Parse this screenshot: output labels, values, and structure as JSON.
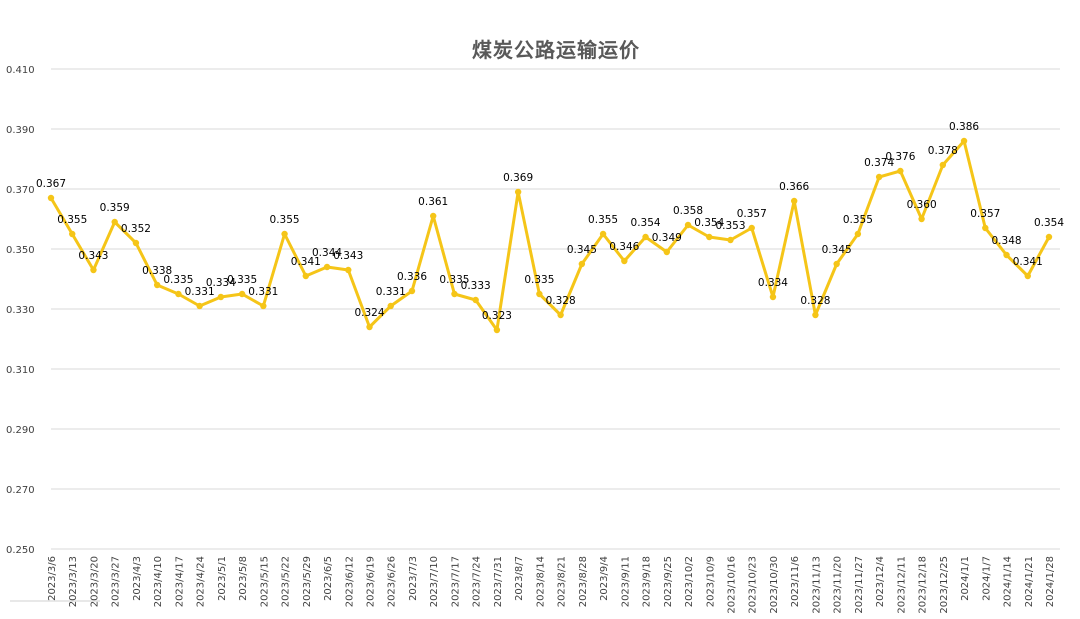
{
  "chart_data": {
    "type": "line",
    "title": "煤炭公路运输运价",
    "xlabel": "",
    "ylabel": "",
    "ylim": [
      0.25,
      0.41
    ],
    "yticks": [
      "0.250",
      "0.270",
      "0.290",
      "0.310",
      "0.330",
      "0.350",
      "0.370",
      "0.390",
      "0.410"
    ],
    "grid": true,
    "legend": "none",
    "line_color": "#f5c518",
    "categories": [
      "2023/3/6",
      "2023/3/13",
      "2023/3/20",
      "2023/3/27",
      "2023/4/3",
      "2023/4/10",
      "2023/4/17",
      "2023/4/24",
      "2023/5/1",
      "2023/5/8",
      "2023/5/15",
      "2023/5/22",
      "2023/5/29",
      "2023/6/5",
      "2023/6/12",
      "2023/6/19",
      "2023/6/26",
      "2023/7/3",
      "2023/7/10",
      "2023/7/17",
      "2023/7/24",
      "2023/7/31",
      "2023/8/7",
      "2023/8/14",
      "2023/8/21",
      "2023/8/28",
      "2023/9/4",
      "2023/9/11",
      "2023/9/18",
      "2023/9/25",
      "2023/10/2",
      "2023/10/9",
      "2023/10/16",
      "2023/10/23",
      "2023/10/30",
      "2023/11/6",
      "2023/11/13",
      "2023/11/20",
      "2023/11/27",
      "2023/12/4",
      "2023/12/11",
      "2023/12/18",
      "2023/12/25",
      "2024/1/1",
      "2024/1/7",
      "2024/1/14",
      "2024/1/21",
      "2024/1/28"
    ],
    "values": [
      0.367,
      0.355,
      0.343,
      0.359,
      0.352,
      0.338,
      0.335,
      0.331,
      0.334,
      0.335,
      0.331,
      0.355,
      0.341,
      0.344,
      0.343,
      0.324,
      0.331,
      0.336,
      0.361,
      0.335,
      0.333,
      0.323,
      0.369,
      0.335,
      0.328,
      0.345,
      0.355,
      0.346,
      0.354,
      0.349,
      0.358,
      0.354,
      0.353,
      0.357,
      0.334,
      0.366,
      0.328,
      0.345,
      0.355,
      0.374,
      0.376,
      0.36,
      0.378,
      0.386,
      0.357,
      0.348,
      0.341,
      0.354
    ],
    "data_labels": [
      "0.367",
      "0.355",
      "0.343",
      "0.359",
      "0.352",
      "0.338",
      "0.335",
      "0.331",
      "0.334",
      "0.335",
      "0.331",
      "0.355",
      "0.341",
      "0.344",
      "0.343",
      "0.324",
      "0.331",
      "0.336",
      "0.361",
      "0.335",
      "0.333",
      "0.323",
      "0.369",
      "0.335",
      "0.328",
      "0.345",
      "0.355",
      "0.346",
      "0.354",
      "0.349",
      "0.358",
      "0.354",
      "0.353",
      "0.357",
      "0.334",
      "0.366",
      "0.328",
      "0.345",
      "0.355",
      "0.374",
      "0.376",
      "0.360",
      "0.378",
      "0.386",
      "0.357",
      "0.348",
      "0.341",
      "0.354"
    ]
  }
}
